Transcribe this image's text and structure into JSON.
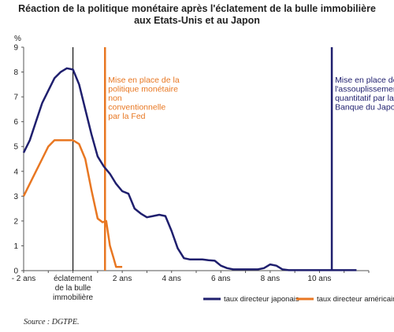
{
  "title_line1": "Réaction de la politique monétaire après l'éclatement de la bulle immobilière",
  "title_line2": "aux Etats-Unis et au Japon",
  "source": "Source : DGTPE.",
  "chart_data": {
    "type": "line",
    "ylabel": "%",
    "ylim": [
      0,
      9
    ],
    "xlim": [
      -2,
      12
    ],
    "yticks": [
      0,
      1,
      2,
      3,
      4,
      5,
      6,
      7,
      8,
      9
    ],
    "xticks": [
      {
        "x": -2,
        "label": "- 2 ans"
      },
      {
        "x": 0,
        "label": "éclatement"
      },
      {
        "x": 2,
        "label": "2 ans"
      },
      {
        "x": 4,
        "label": "4 ans"
      },
      {
        "x": 6,
        "label": "6 ans"
      },
      {
        "x": 8,
        "label": "8 ans"
      },
      {
        "x": 10,
        "label": "10 ans"
      }
    ],
    "xtick_sublabels": [
      "de la bulle",
      "immobilière"
    ],
    "grid": false,
    "legend_position": "bottom",
    "series": [
      {
        "name": "taux directeur japonais",
        "color": "#1f1f6e",
        "x": [
          -2,
          -1.75,
          -1.5,
          -1.25,
          -1,
          -0.75,
          -0.5,
          -0.25,
          0,
          0.25,
          0.5,
          0.75,
          1,
          1.25,
          1.5,
          1.75,
          2,
          2.25,
          2.5,
          2.75,
          3,
          3.25,
          3.5,
          3.75,
          4,
          4.25,
          4.5,
          4.75,
          5,
          5.25,
          5.5,
          5.75,
          6,
          6.25,
          6.5,
          6.75,
          7,
          7.25,
          7.5,
          7.75,
          8,
          8.25,
          8.5,
          8.75,
          9,
          9.5,
          10,
          10.5,
          11,
          11.5
        ],
        "values": [
          4.75,
          5.25,
          6.0,
          6.75,
          7.25,
          7.75,
          8.0,
          8.15,
          8.1,
          7.5,
          6.5,
          5.5,
          4.6,
          4.2,
          3.9,
          3.5,
          3.2,
          3.1,
          2.5,
          2.3,
          2.15,
          2.2,
          2.25,
          2.2,
          1.6,
          0.9,
          0.5,
          0.45,
          0.45,
          0.45,
          0.42,
          0.4,
          0.2,
          0.1,
          0.05,
          0.05,
          0.05,
          0.05,
          0.05,
          0.1,
          0.25,
          0.2,
          0.05,
          0.02,
          0.02,
          0.02,
          0.02,
          0.02,
          0.02,
          0.02
        ]
      },
      {
        "name": "taux directeur américain",
        "color": "#e87722",
        "x": [
          -2,
          -1.75,
          -1.5,
          -1.25,
          -1,
          -0.75,
          -0.5,
          -0.25,
          0,
          0.25,
          0.5,
          0.75,
          1,
          1.2,
          1.35,
          1.5,
          1.65,
          1.75,
          2
        ],
        "values": [
          3.0,
          3.5,
          4.0,
          4.5,
          5.0,
          5.25,
          5.25,
          5.25,
          5.25,
          5.1,
          4.5,
          3.25,
          2.1,
          1.95,
          2.0,
          1.0,
          0.5,
          0.15,
          0.15
        ]
      }
    ],
    "vlines": [
      {
        "x": 0,
        "color": "#111111",
        "label": []
      },
      {
        "x": 1.3,
        "color": "#e87722",
        "label": [
          "Mise en place de la",
          "politique monétaire",
          "non",
          "conventionnelle",
          "par la Fed"
        ]
      },
      {
        "x": 10.5,
        "color": "#1f1f6e",
        "label": [
          "Mise en place de",
          "l'assouplissement",
          "quantitatif par la",
          "Banque du Japon"
        ]
      }
    ]
  }
}
